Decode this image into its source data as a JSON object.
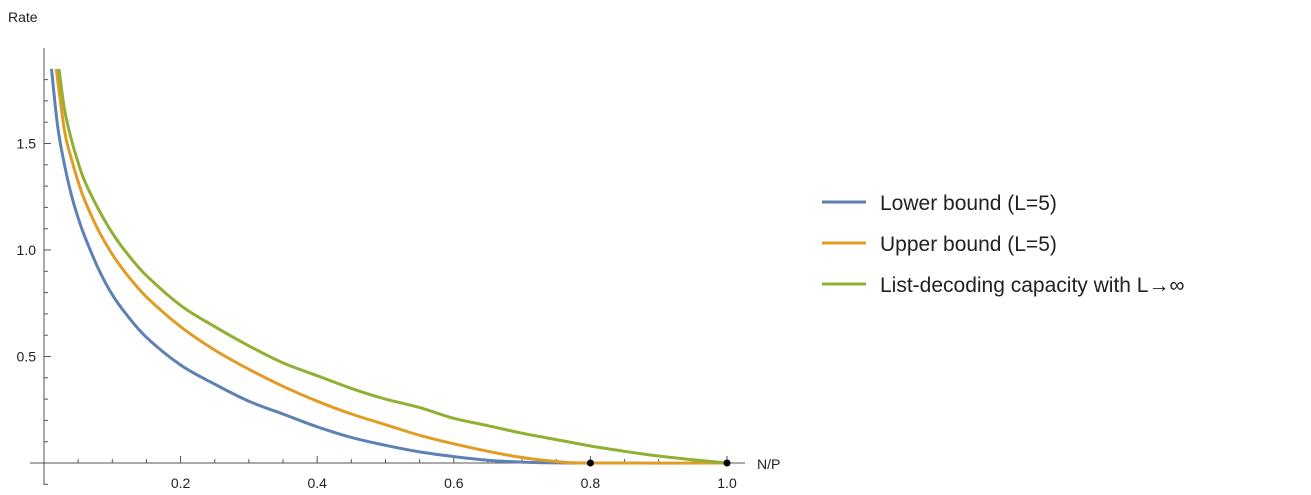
{
  "chart_data": {
    "type": "line",
    "title": "",
    "xlabel": "N/P",
    "ylabel": "Rate",
    "xlim": [
      0,
      1.0
    ],
    "ylim": [
      -0.1,
      1.85
    ],
    "x_ticks_major": [
      0.2,
      0.4,
      0.6,
      0.8,
      1.0
    ],
    "x_tick_labels": [
      "0.2",
      "0.4",
      "0.6",
      "0.8",
      "1.0"
    ],
    "y_ticks_major": [
      0.5,
      1.0,
      1.5
    ],
    "y_tick_labels": [
      "0.5",
      "1.0",
      "1.5"
    ],
    "grid": false,
    "legend_position": "right",
    "series": [
      {
        "name": "Lower bound (L=5)",
        "color": "#5e81b5",
        "x": [
          0.011,
          0.02,
          0.03,
          0.04,
          0.05,
          0.06,
          0.08,
          0.1,
          0.12,
          0.15,
          0.2,
          0.25,
          0.3,
          0.35,
          0.4,
          0.45,
          0.5,
          0.55,
          0.6,
          0.65,
          0.7,
          0.75,
          0.8
        ],
        "y": [
          1.85,
          1.58,
          1.4,
          1.26,
          1.15,
          1.06,
          0.91,
          0.79,
          0.7,
          0.59,
          0.46,
          0.37,
          0.29,
          0.23,
          0.17,
          0.12,
          0.083,
          0.052,
          0.03,
          0.013,
          0.004,
          0.0005,
          0.0
        ]
      },
      {
        "name": "Upper bound (L=5)",
        "color": "#e19c24",
        "x": [
          0.018,
          0.03,
          0.04,
          0.05,
          0.06,
          0.08,
          0.1,
          0.12,
          0.15,
          0.2,
          0.25,
          0.3,
          0.35,
          0.4,
          0.45,
          0.5,
          0.55,
          0.6,
          0.65,
          0.7,
          0.75,
          0.8,
          1.0
        ],
        "y": [
          1.85,
          1.56,
          1.43,
          1.32,
          1.23,
          1.09,
          0.98,
          0.89,
          0.78,
          0.64,
          0.53,
          0.44,
          0.36,
          0.29,
          0.23,
          0.18,
          0.13,
          0.09,
          0.055,
          0.026,
          0.007,
          0.0,
          0.0
        ]
      },
      {
        "name": "List-decoding capacity with L→∞",
        "color": "#8fb032",
        "x": [
          0.022,
          0.03,
          0.04,
          0.05,
          0.06,
          0.08,
          0.1,
          0.12,
          0.15,
          0.2,
          0.25,
          0.3,
          0.35,
          0.4,
          0.45,
          0.5,
          0.55,
          0.6,
          0.65,
          0.7,
          0.75,
          0.8,
          0.85,
          0.9,
          0.95,
          1.0
        ],
        "y": [
          1.85,
          1.66,
          1.52,
          1.41,
          1.32,
          1.19,
          1.08,
          0.99,
          0.88,
          0.74,
          0.64,
          0.55,
          0.47,
          0.41,
          0.35,
          0.3,
          0.26,
          0.21,
          0.175,
          0.14,
          0.11,
          0.08,
          0.055,
          0.033,
          0.015,
          0.0
        ]
      }
    ],
    "marked_points": [
      {
        "x": 0.8,
        "y": 0.0
      },
      {
        "x": 1.0,
        "y": 0.0
      }
    ]
  }
}
